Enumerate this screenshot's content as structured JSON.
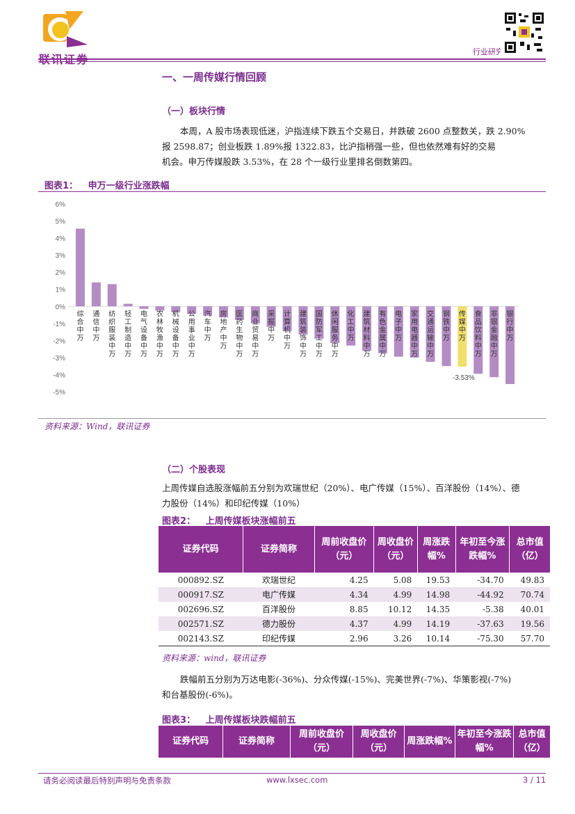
{
  "header": {
    "logo_text": "联讯证券",
    "section_label": "行业研究"
  },
  "section1": {
    "title": "一、一周传媒行情回顾"
  },
  "sub1": {
    "title": "（一）板块行情",
    "para": [
      "本周，A 股市场表现低迷，沪指连续下跌五个交易日，并跌破 2600 点整数关，跌 2.90%",
      "报 2598.87；创业板跌 1.89%报 1322.83，比沪指稍强一些，但也依然难有好的交易",
      "机会。申万传媒股跌 3.53%，在 28 个一级行业里排名倒数第四。"
    ]
  },
  "figure1": {
    "label": "图表1：",
    "title": "申万一级行业涨跌幅",
    "source": "资料来源：Wind，联讯证券"
  },
  "chart_data": {
    "type": "bar",
    "title": "申万一级行业涨跌幅",
    "categories": [
      "综合中万",
      "通信中万",
      "纺织服装中万",
      "轻工制造中万",
      "电气设备中万",
      "农林牧渔中万",
      "机械设备中万",
      "公用事业中万",
      "汽车中万",
      "房地产中万",
      "医药生物中万",
      "商业贸易中万",
      "采掘中万",
      "计算机中万",
      "建筑装饰中万",
      "国防军工中万",
      "休闲服务中万",
      "化工中万",
      "建筑材料中万",
      "有色金属中万",
      "电子中万",
      "家用电器中万",
      "交通运输中万",
      "钢铁中万",
      "传媒中万",
      "食品饮料中万",
      "非银金融中万",
      "银行中万"
    ],
    "values": [
      4.55,
      1.4,
      1.3,
      0.15,
      -0.15,
      -0.25,
      -0.35,
      -0.45,
      -0.55,
      -0.65,
      -0.8,
      -1.0,
      -1.2,
      -1.45,
      -1.65,
      -1.9,
      -2.15,
      -2.3,
      -2.6,
      -2.75,
      -2.95,
      -3.0,
      -3.25,
      -3.5,
      -3.53,
      -3.95,
      -4.15,
      -4.55
    ],
    "highlight_index": 24,
    "highlight_label": "-3.53%",
    "ylim": [
      -5,
      6
    ],
    "yticks": [
      "6%",
      "5%",
      "4%",
      "3%",
      "2%",
      "1%",
      "0%",
      "-1%",
      "-2%",
      "-3%",
      "-4%",
      "-5%"
    ],
    "colors": {
      "bar": "#b48cc4",
      "highlight": "#f0df6a"
    }
  },
  "sub2": {
    "title": "（二）个股表现",
    "para": [
      "上周传媒自选股涨幅前五分别为欢瑞世纪（20%）、电广传媒（15%）、百洋股份（14%）、德",
      "力股份（14%）和印纪传媒（10%）"
    ]
  },
  "figure2": {
    "label": "图表2：",
    "title": "上周传媒板块涨幅前五",
    "headers": [
      "证券代码",
      "证券简称",
      "周前收盘价（元）",
      "周收盘价（元）",
      "周涨跌幅%",
      "年初至今涨跌幅%",
      "总市值（亿）"
    ],
    "rows": [
      [
        "000892.SZ",
        "欢瑞世纪",
        "4.25",
        "5.08",
        "19.53",
        "-34.70",
        "49.83"
      ],
      [
        "000917.SZ",
        "电广传媒",
        "4.34",
        "4.99",
        "14.98",
        "-44.92",
        "70.74"
      ],
      [
        "002696.SZ",
        "百洋股份",
        "8.85",
        "10.12",
        "14.35",
        "-5.38",
        "40.01"
      ],
      [
        "002571.SZ",
        "德力股份",
        "4.37",
        "4.99",
        "14.19",
        "-37.63",
        "19.56"
      ],
      [
        "002143.SZ",
        "印纪传媒",
        "2.96",
        "3.26",
        "10.14",
        "-75.30",
        "57.70"
      ]
    ],
    "source": "资料来源：wind，联讯证券"
  },
  "para3": [
    "跌幅前五分别为万达电影(-36%)、分众传媒(-15%)、完美世界(-7%)、华策影视(-7%)",
    "和台基股份(-6%)。"
  ],
  "figure3": {
    "label": "图表3：",
    "title": "上周传媒板块跌幅前五",
    "headers": [
      "证券代码",
      "证券简称",
      "周前收盘价（元）",
      "周收盘价（元）",
      "周涨跌幅%",
      "年初至今涨跌幅%",
      "总市值（亿）"
    ]
  },
  "footer": {
    "disclaimer": "请务必阅读最后特别声明与免责条款",
    "url": "www.lxsec.com",
    "page": "3 / 11"
  }
}
